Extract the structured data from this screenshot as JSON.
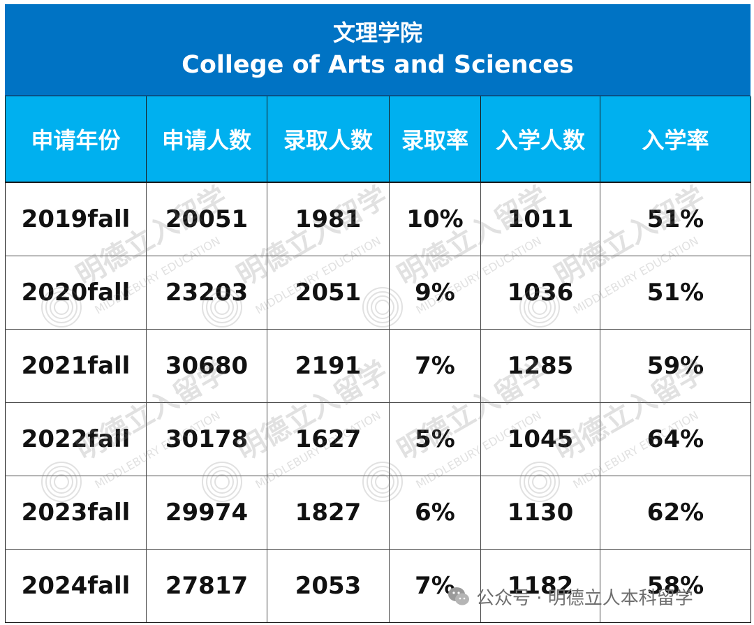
{
  "chart_data": {
    "type": "table",
    "title": "文理学院",
    "subtitle": "College of Arts and Sciences",
    "columns": [
      "申请年份",
      "申请人数",
      "录取人数",
      "录取率",
      "入学人数",
      "入学率"
    ],
    "rows": [
      [
        "2019fall",
        "20051",
        "1981",
        "10%",
        "1011",
        "51%"
      ],
      [
        "2020fall",
        "23203",
        "2051",
        "9%",
        "1036",
        "51%"
      ],
      [
        "2021fall",
        "30680",
        "2191",
        "7%",
        "1285",
        "59%"
      ],
      [
        "2022fall",
        "30178",
        "1627",
        "5%",
        "1045",
        "64%"
      ],
      [
        "2023fall",
        "29974",
        "1827",
        "6%",
        "1130",
        "62%"
      ],
      [
        "2024fall",
        "27817",
        "2053",
        "7%",
        "1182",
        "58%"
      ]
    ]
  },
  "watermark": {
    "zh": "明德立入留学",
    "en": "MIDDLEBURY EDUCATION"
  },
  "footer": {
    "text": "公众号 · 明德立人本科留学",
    "icon": "wechat-icon"
  },
  "colors": {
    "title_bg": "#0073c4",
    "header_bg": "#00b0ef"
  }
}
